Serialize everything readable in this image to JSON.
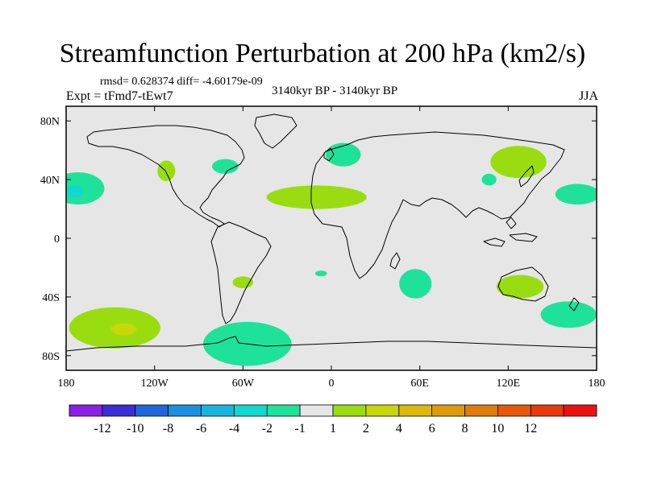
{
  "figure": {
    "title": "Streamfunction Perturbation at 200 hPa (km2/s)",
    "stats": "rmsd= 0.628374 diff= -4.60179e-09",
    "period": "3140kyr BP - 3140kyr BP",
    "experiment": "Expt = tFmd7-tEwt7",
    "season": "JJA"
  },
  "chart_data": {
    "type": "heatmap",
    "projection": "cylindrical-equidistant",
    "variable": "Streamfunction Perturbation at 200 hPa",
    "units": "km2/s",
    "lon_range": [
      -180,
      180
    ],
    "lat_range": [
      -90,
      90
    ],
    "x_ticks": [
      {
        "value": -180,
        "label": "180"
      },
      {
        "value": -120,
        "label": "120W"
      },
      {
        "value": -60,
        "label": "60W"
      },
      {
        "value": 0,
        "label": "0"
      },
      {
        "value": 60,
        "label": "60E"
      },
      {
        "value": 120,
        "label": "120E"
      },
      {
        "value": 180,
        "label": "180"
      }
    ],
    "y_ticks": [
      {
        "value": 80,
        "label": "80N"
      },
      {
        "value": 40,
        "label": "40N"
      },
      {
        "value": 0,
        "label": "0"
      },
      {
        "value": -40,
        "label": "40S"
      },
      {
        "value": -80,
        "label": "80S"
      }
    ],
    "colorbar": {
      "colors": [
        "#8c1ee6",
        "#3a2fd8",
        "#1f66d9",
        "#1b8fe0",
        "#17b5dc",
        "#10d8d0",
        "#1ee29a",
        "#e6e6e6",
        "#99dd11",
        "#c8d70a",
        "#dcb80a",
        "#df9a09",
        "#e07a08",
        "#e65808",
        "#e9380a",
        "#ee1010"
      ],
      "tick_labels": [
        "-12",
        "-10",
        "-8",
        "-6",
        "-4",
        "-2",
        "-1",
        "1",
        "2",
        "4",
        "6",
        "8",
        "10",
        "12"
      ]
    },
    "anomalies": [
      {
        "name": "north-pacific-west",
        "lon": -172,
        "lat": 34,
        "rlon": 18,
        "rlat": 11,
        "level": "-2",
        "color": "#1ee29a"
      },
      {
        "name": "north-pacific-west-core",
        "lon": -174,
        "lat": 32,
        "rlon": 6,
        "rlat": 4,
        "level": "-4",
        "color": "#10d8d0"
      },
      {
        "name": "northeast-pacific",
        "lon": -112,
        "lat": 46,
        "rlon": 6,
        "rlat": 7,
        "level": "1",
        "color": "#99dd11"
      },
      {
        "name": "northeast-north-america",
        "lon": -72,
        "lat": 49,
        "rlon": 9,
        "rlat": 5,
        "level": "-1",
        "color": "#1ee29a"
      },
      {
        "name": "north-atlantic-europe",
        "lon": 8,
        "lat": 57,
        "rlon": 12,
        "rlat": 8,
        "level": "-1",
        "color": "#1ee29a"
      },
      {
        "name": "north-africa-band",
        "lon": -10,
        "lat": 28,
        "rlon": 34,
        "rlat": 8,
        "level": "1",
        "color": "#99dd11"
      },
      {
        "name": "northeast-asia",
        "lon": 127,
        "lat": 52,
        "rlon": 19,
        "rlat": 11,
        "level": "1",
        "color": "#99dd11"
      },
      {
        "name": "central-asia",
        "lon": 107,
        "lat": 40,
        "rlon": 5,
        "rlat": 4,
        "level": "-1",
        "color": "#1ee29a"
      },
      {
        "name": "northwest-pacific",
        "lon": 167,
        "lat": 30,
        "rlon": 15,
        "rlat": 7,
        "level": "-1",
        "color": "#1ee29a"
      },
      {
        "name": "southern-indian-ocean",
        "lon": 57,
        "lat": -31,
        "rlon": 11,
        "rlat": 10,
        "level": "-1",
        "color": "#1ee29a"
      },
      {
        "name": "south-atlantic-small",
        "lon": -7,
        "lat": -24,
        "rlon": 4,
        "rlat": 2,
        "level": "-1",
        "color": "#1ee29a"
      },
      {
        "name": "south-america",
        "lon": -60,
        "lat": -30,
        "rlon": 7,
        "rlat": 4,
        "level": "1",
        "color": "#99dd11"
      },
      {
        "name": "australia",
        "lon": 128,
        "lat": -33,
        "rlon": 16,
        "rlat": 8,
        "level": "1",
        "color": "#99dd11"
      },
      {
        "name": "southwest-pacific",
        "lon": 161,
        "lat": -52,
        "rlon": 19,
        "rlat": 9,
        "level": "-1",
        "color": "#1ee29a"
      },
      {
        "name": "south-pacific",
        "lon": -147,
        "lat": -61,
        "rlon": 31,
        "rlat": 14,
        "level": "1",
        "color": "#99dd11"
      },
      {
        "name": "south-pacific-core",
        "lon": -141,
        "lat": -62,
        "rlon": 9,
        "rlat": 4,
        "level": "2",
        "color": "#c8d70a"
      },
      {
        "name": "drake-passage",
        "lon": -57,
        "lat": -72,
        "rlon": 30,
        "rlat": 15,
        "level": "-1",
        "color": "#1ee29a"
      }
    ]
  }
}
